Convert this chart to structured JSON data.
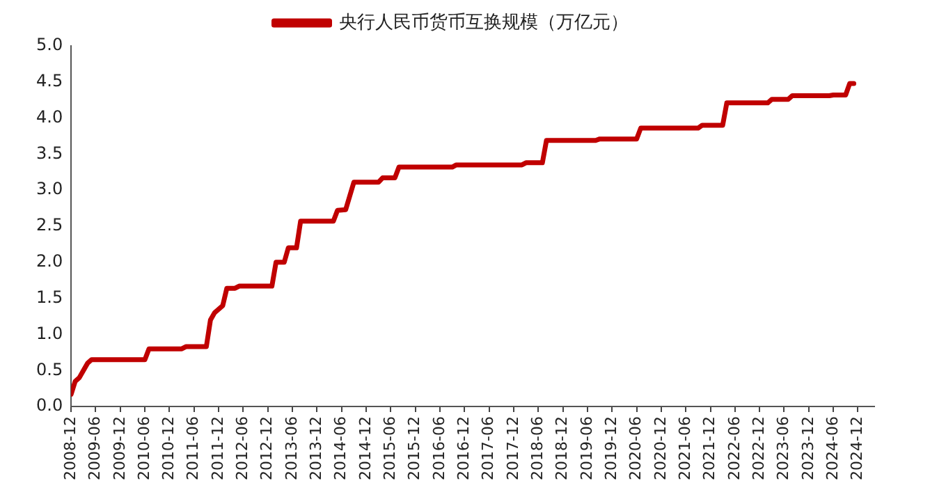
{
  "chart_data": {
    "type": "line",
    "legend": "top",
    "grid": false,
    "marker": "none",
    "line_style": "solid",
    "x": [
      "2008-12",
      "2009-01",
      "2009-02",
      "2009-03",
      "2009-04",
      "2009-05",
      "2010-06",
      "2010-07",
      "2011-03",
      "2011-04",
      "2011-09",
      "2011-10",
      "2011-11",
      "2012-01",
      "2012-02",
      "2012-04",
      "2012-05",
      "2013-01",
      "2013-02",
      "2013-04",
      "2013-05",
      "2013-07",
      "2013-08",
      "2014-04",
      "2014-05",
      "2014-07",
      "2014-09",
      "2015-03",
      "2015-04",
      "2015-07",
      "2015-08",
      "2016-09",
      "2016-10",
      "2018-02",
      "2018-03",
      "2018-07",
      "2018-08",
      "2019-08",
      "2019-09",
      "2020-06",
      "2020-07",
      "2021-09",
      "2021-10",
      "2022-03",
      "2022-04",
      "2023-02",
      "2023-03",
      "2023-07",
      "2023-08",
      "2024-05",
      "2024-06",
      "2024-09",
      "2024-10",
      "2024-11"
    ],
    "series": [
      {
        "name": "央行人民币货币互换规模（万亿元）",
        "color": "#c00000",
        "values": [
          0.17,
          0.35,
          0.4,
          0.5,
          0.6,
          0.65,
          0.65,
          0.8,
          0.8,
          0.83,
          0.83,
          1.2,
          1.3,
          1.4,
          1.64,
          1.64,
          1.67,
          1.67,
          2.0,
          2.0,
          2.2,
          2.2,
          2.57,
          2.57,
          2.72,
          2.73,
          3.11,
          3.11,
          3.17,
          3.17,
          3.32,
          3.32,
          3.35,
          3.35,
          3.38,
          3.38,
          3.69,
          3.69,
          3.71,
          3.71,
          3.86,
          3.86,
          3.9,
          3.9,
          4.21,
          4.21,
          4.26,
          4.26,
          4.31,
          4.31,
          4.32,
          4.32,
          4.48,
          4.48
        ]
      }
    ],
    "xlim": [
      "2008-12",
      "2025-04"
    ],
    "xticks": [
      "2008-12",
      "2009-06",
      "2009-12",
      "2010-06",
      "2010-12",
      "2011-06",
      "2011-12",
      "2012-06",
      "2012-12",
      "2013-06",
      "2013-12",
      "2014-06",
      "2014-12",
      "2015-06",
      "2015-12",
      "2016-06",
      "2016-12",
      "2017-06",
      "2017-12",
      "2018-06",
      "2018-12",
      "2019-06",
      "2019-12",
      "2020-06",
      "2020-12",
      "2021-06",
      "2021-12",
      "2022-06",
      "2022-12",
      "2023-06",
      "2023-12",
      "2024-06",
      "2024-12"
    ],
    "ylim": [
      0,
      5
    ],
    "yticks": [
      {
        "value": 0,
        "label": "0.0"
      },
      {
        "value": 0.5,
        "label": "0.5"
      },
      {
        "value": 1,
        "label": "1.0"
      },
      {
        "value": 1.5,
        "label": "1.5"
      },
      {
        "value": 2,
        "label": "2.0"
      },
      {
        "value": 2.5,
        "label": "2.5"
      },
      {
        "value": 3,
        "label": "3.0"
      },
      {
        "value": 3.5,
        "label": "3.5"
      },
      {
        "value": 4,
        "label": "4.0"
      },
      {
        "value": 4.5,
        "label": "4.5"
      },
      {
        "value": 5,
        "label": "5.0"
      }
    ]
  }
}
